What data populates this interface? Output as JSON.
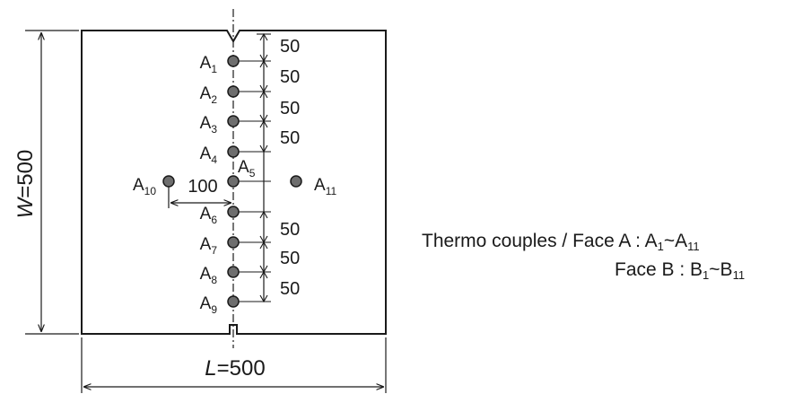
{
  "width_label": {
    "var": "W",
    "value": "=500"
  },
  "length_label": {
    "var": "L",
    "value": "=500"
  },
  "sensors": [
    {
      "name": "A",
      "sub": "1"
    },
    {
      "name": "A",
      "sub": "2"
    },
    {
      "name": "A",
      "sub": "3"
    },
    {
      "name": "A",
      "sub": "4"
    },
    {
      "name": "A",
      "sub": "5"
    },
    {
      "name": "A",
      "sub": "6"
    },
    {
      "name": "A",
      "sub": "7"
    },
    {
      "name": "A",
      "sub": "8"
    },
    {
      "name": "A",
      "sub": "9"
    },
    {
      "name": "A",
      "sub": "10"
    },
    {
      "name": "A",
      "sub": "11"
    }
  ],
  "spacings": [
    "50",
    "50",
    "50",
    "50",
    "50",
    "50",
    "50"
  ],
  "offset_dim": "100",
  "legend": {
    "line1_prefix": "Thermo couples / Face A : ",
    "line1_from": {
      "name": "A",
      "sub": "1"
    },
    "line1_sep": "~",
    "line1_to": {
      "name": "A",
      "sub": "11"
    },
    "line2_prefix": "Face B : ",
    "line2_from": {
      "name": "B",
      "sub": "1"
    },
    "line2_sep": "~",
    "line2_to": {
      "name": "B",
      "sub": "11"
    }
  },
  "colors": {
    "ink": "#1a1a1a",
    "marker_fill": "#6e6e6e",
    "background": "#ffffff"
  }
}
